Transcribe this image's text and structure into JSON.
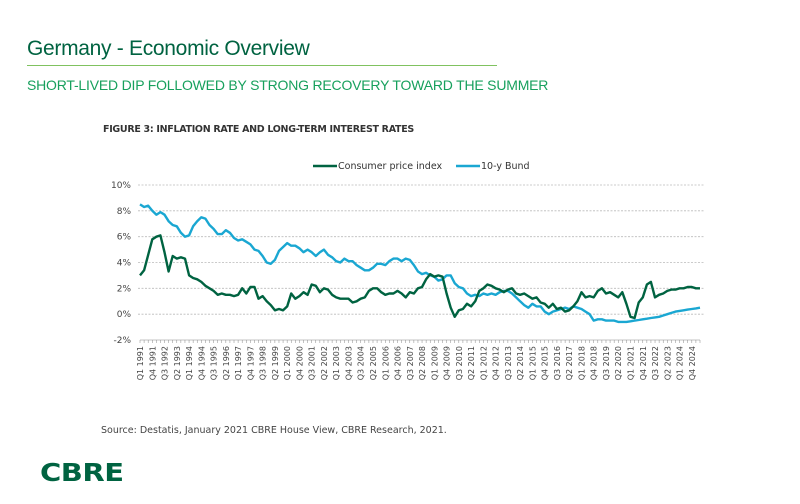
{
  "page": {
    "title": "Germany - Economic Overview",
    "subtitle": "SHORT-LIVED DIP FOLLOWED BY STRONG RECOVERY TOWARD THE SUMMER",
    "source": "Source: Destatis, January 2021 CBRE House View, CBRE Research, 2021.",
    "logo": "CBRE"
  },
  "chart_data": {
    "type": "line",
    "title": "FIGURE 3: INFLATION RATE AND LONG-TERM INTEREST RATES",
    "xlabel": "",
    "ylabel": "",
    "ylim": [
      -2,
      10
    ],
    "yticks": [
      "-2%",
      "0%",
      "2%",
      "4%",
      "6%",
      "8%",
      "10%"
    ],
    "ytick_values": [
      -2,
      0,
      2,
      4,
      6,
      8,
      10
    ],
    "grid": true,
    "legend_position": "top-center",
    "x_start": "Q1 1991",
    "x_end": "Q4 2024",
    "x_tick_labels": [
      "Q1 1991",
      "Q4 1991",
      "Q3 1992",
      "Q2 1993",
      "Q1 1994",
      "Q4 1994",
      "Q3 1995",
      "Q2 1996",
      "Q1 1997",
      "Q4 1997",
      "Q3 1998",
      "Q2 1999",
      "Q1 2000",
      "Q4 2000",
      "Q3 2001",
      "Q2 2002",
      "Q1 2003",
      "Q4 2003",
      "Q3 2004",
      "Q2 2005",
      "Q1 2006",
      "Q4 2006",
      "Q3 2007",
      "Q2 2008",
      "Q1 2009",
      "Q4 2009",
      "Q3 2010",
      "Q2 2011",
      "Q1 2012",
      "Q4 2012",
      "Q3 2013",
      "Q2 2014",
      "Q1 2015",
      "Q4 2015",
      "Q3 2016",
      "Q2 2017",
      "Q1 2018",
      "Q4 2018",
      "Q3 2019",
      "Q2 2020",
      "Q1 2021",
      "Q4 2021",
      "Q3 2022",
      "Q2 2023",
      "Q1 2024",
      "Q4 2024"
    ],
    "series": [
      {
        "name": "Consumer price index",
        "color": "#006341",
        "values": [
          3.0,
          3.4,
          4.6,
          5.8,
          6.0,
          6.1,
          4.8,
          3.3,
          4.5,
          4.3,
          4.4,
          4.3,
          3.0,
          2.8,
          2.7,
          2.5,
          2.2,
          2.0,
          1.8,
          1.5,
          1.6,
          1.5,
          1.5,
          1.4,
          1.5,
          2.0,
          1.6,
          2.1,
          2.1,
          1.2,
          1.4,
          1.0,
          0.7,
          0.3,
          0.4,
          0.3,
          0.6,
          1.6,
          1.2,
          1.4,
          1.7,
          1.5,
          2.3,
          2.2,
          1.7,
          2.0,
          1.9,
          1.5,
          1.3,
          1.2,
          1.2,
          1.2,
          0.9,
          1.0,
          1.2,
          1.3,
          1.8,
          2.0,
          2.0,
          1.7,
          1.5,
          1.6,
          1.6,
          1.8,
          1.6,
          1.3,
          1.7,
          1.6,
          2.0,
          2.1,
          2.7,
          3.1,
          2.9,
          3.0,
          2.9,
          1.6,
          0.5,
          -0.2,
          0.3,
          0.4,
          0.8,
          0.6,
          1.0,
          1.8,
          2.0,
          2.3,
          2.2,
          2.0,
          1.9,
          1.7,
          1.9,
          2.0,
          1.6,
          1.5,
          1.6,
          1.4,
          1.2,
          1.3,
          0.9,
          0.8,
          0.5,
          0.8,
          0.4,
          0.5,
          0.2,
          0.3,
          0.6,
          1.0,
          1.7,
          1.3,
          1.4,
          1.3,
          1.8,
          2.0,
          1.6,
          1.7,
          1.5,
          1.3,
          1.7,
          0.8,
          -0.2,
          -0.3,
          0.9,
          1.3,
          2.3,
          2.5,
          1.3,
          1.5,
          1.6,
          1.8,
          1.9,
          1.9,
          2.0,
          2.0,
          2.1,
          2.1,
          2.0,
          2.0
        ]
      },
      {
        "name": "10-y Bund",
        "color": "#1aa7d2",
        "values": [
          8.5,
          8.3,
          8.4,
          8.0,
          7.7,
          7.9,
          7.7,
          7.2,
          6.9,
          6.8,
          6.3,
          6.0,
          6.1,
          6.8,
          7.2,
          7.5,
          7.4,
          6.9,
          6.6,
          6.2,
          6.2,
          6.5,
          6.3,
          5.9,
          5.7,
          5.8,
          5.6,
          5.4,
          5.0,
          4.9,
          4.5,
          4.0,
          3.9,
          4.2,
          4.9,
          5.2,
          5.5,
          5.3,
          5.3,
          5.1,
          4.8,
          5.0,
          4.8,
          4.5,
          4.8,
          5.0,
          4.6,
          4.4,
          4.1,
          4.0,
          4.3,
          4.1,
          4.1,
          3.8,
          3.6,
          3.4,
          3.4,
          3.6,
          3.9,
          3.9,
          3.8,
          4.1,
          4.3,
          4.3,
          4.1,
          4.3,
          4.2,
          3.8,
          3.3,
          3.1,
          3.2,
          3.0,
          2.9,
          2.6,
          2.7,
          3.0,
          3.0,
          2.4,
          2.1,
          2.0,
          1.6,
          1.4,
          1.5,
          1.4,
          1.6,
          1.5,
          1.6,
          1.5,
          1.7,
          1.8,
          1.8,
          1.6,
          1.3,
          1.0,
          0.7,
          0.5,
          0.8,
          0.6,
          0.6,
          0.2,
          0.0,
          0.2,
          0.3,
          0.4,
          0.5,
          0.4,
          0.6,
          0.5,
          0.4,
          0.2,
          0.0,
          -0.5,
          -0.4,
          -0.4,
          -0.5,
          -0.5,
          -0.5,
          -0.6,
          -0.6,
          -0.6,
          -0.55,
          -0.5,
          -0.45,
          -0.4,
          -0.35,
          -0.3,
          -0.25,
          -0.2,
          -0.1,
          0.0,
          0.1,
          0.2,
          0.25,
          0.3,
          0.35,
          0.4,
          0.45,
          0.5
        ]
      }
    ]
  }
}
